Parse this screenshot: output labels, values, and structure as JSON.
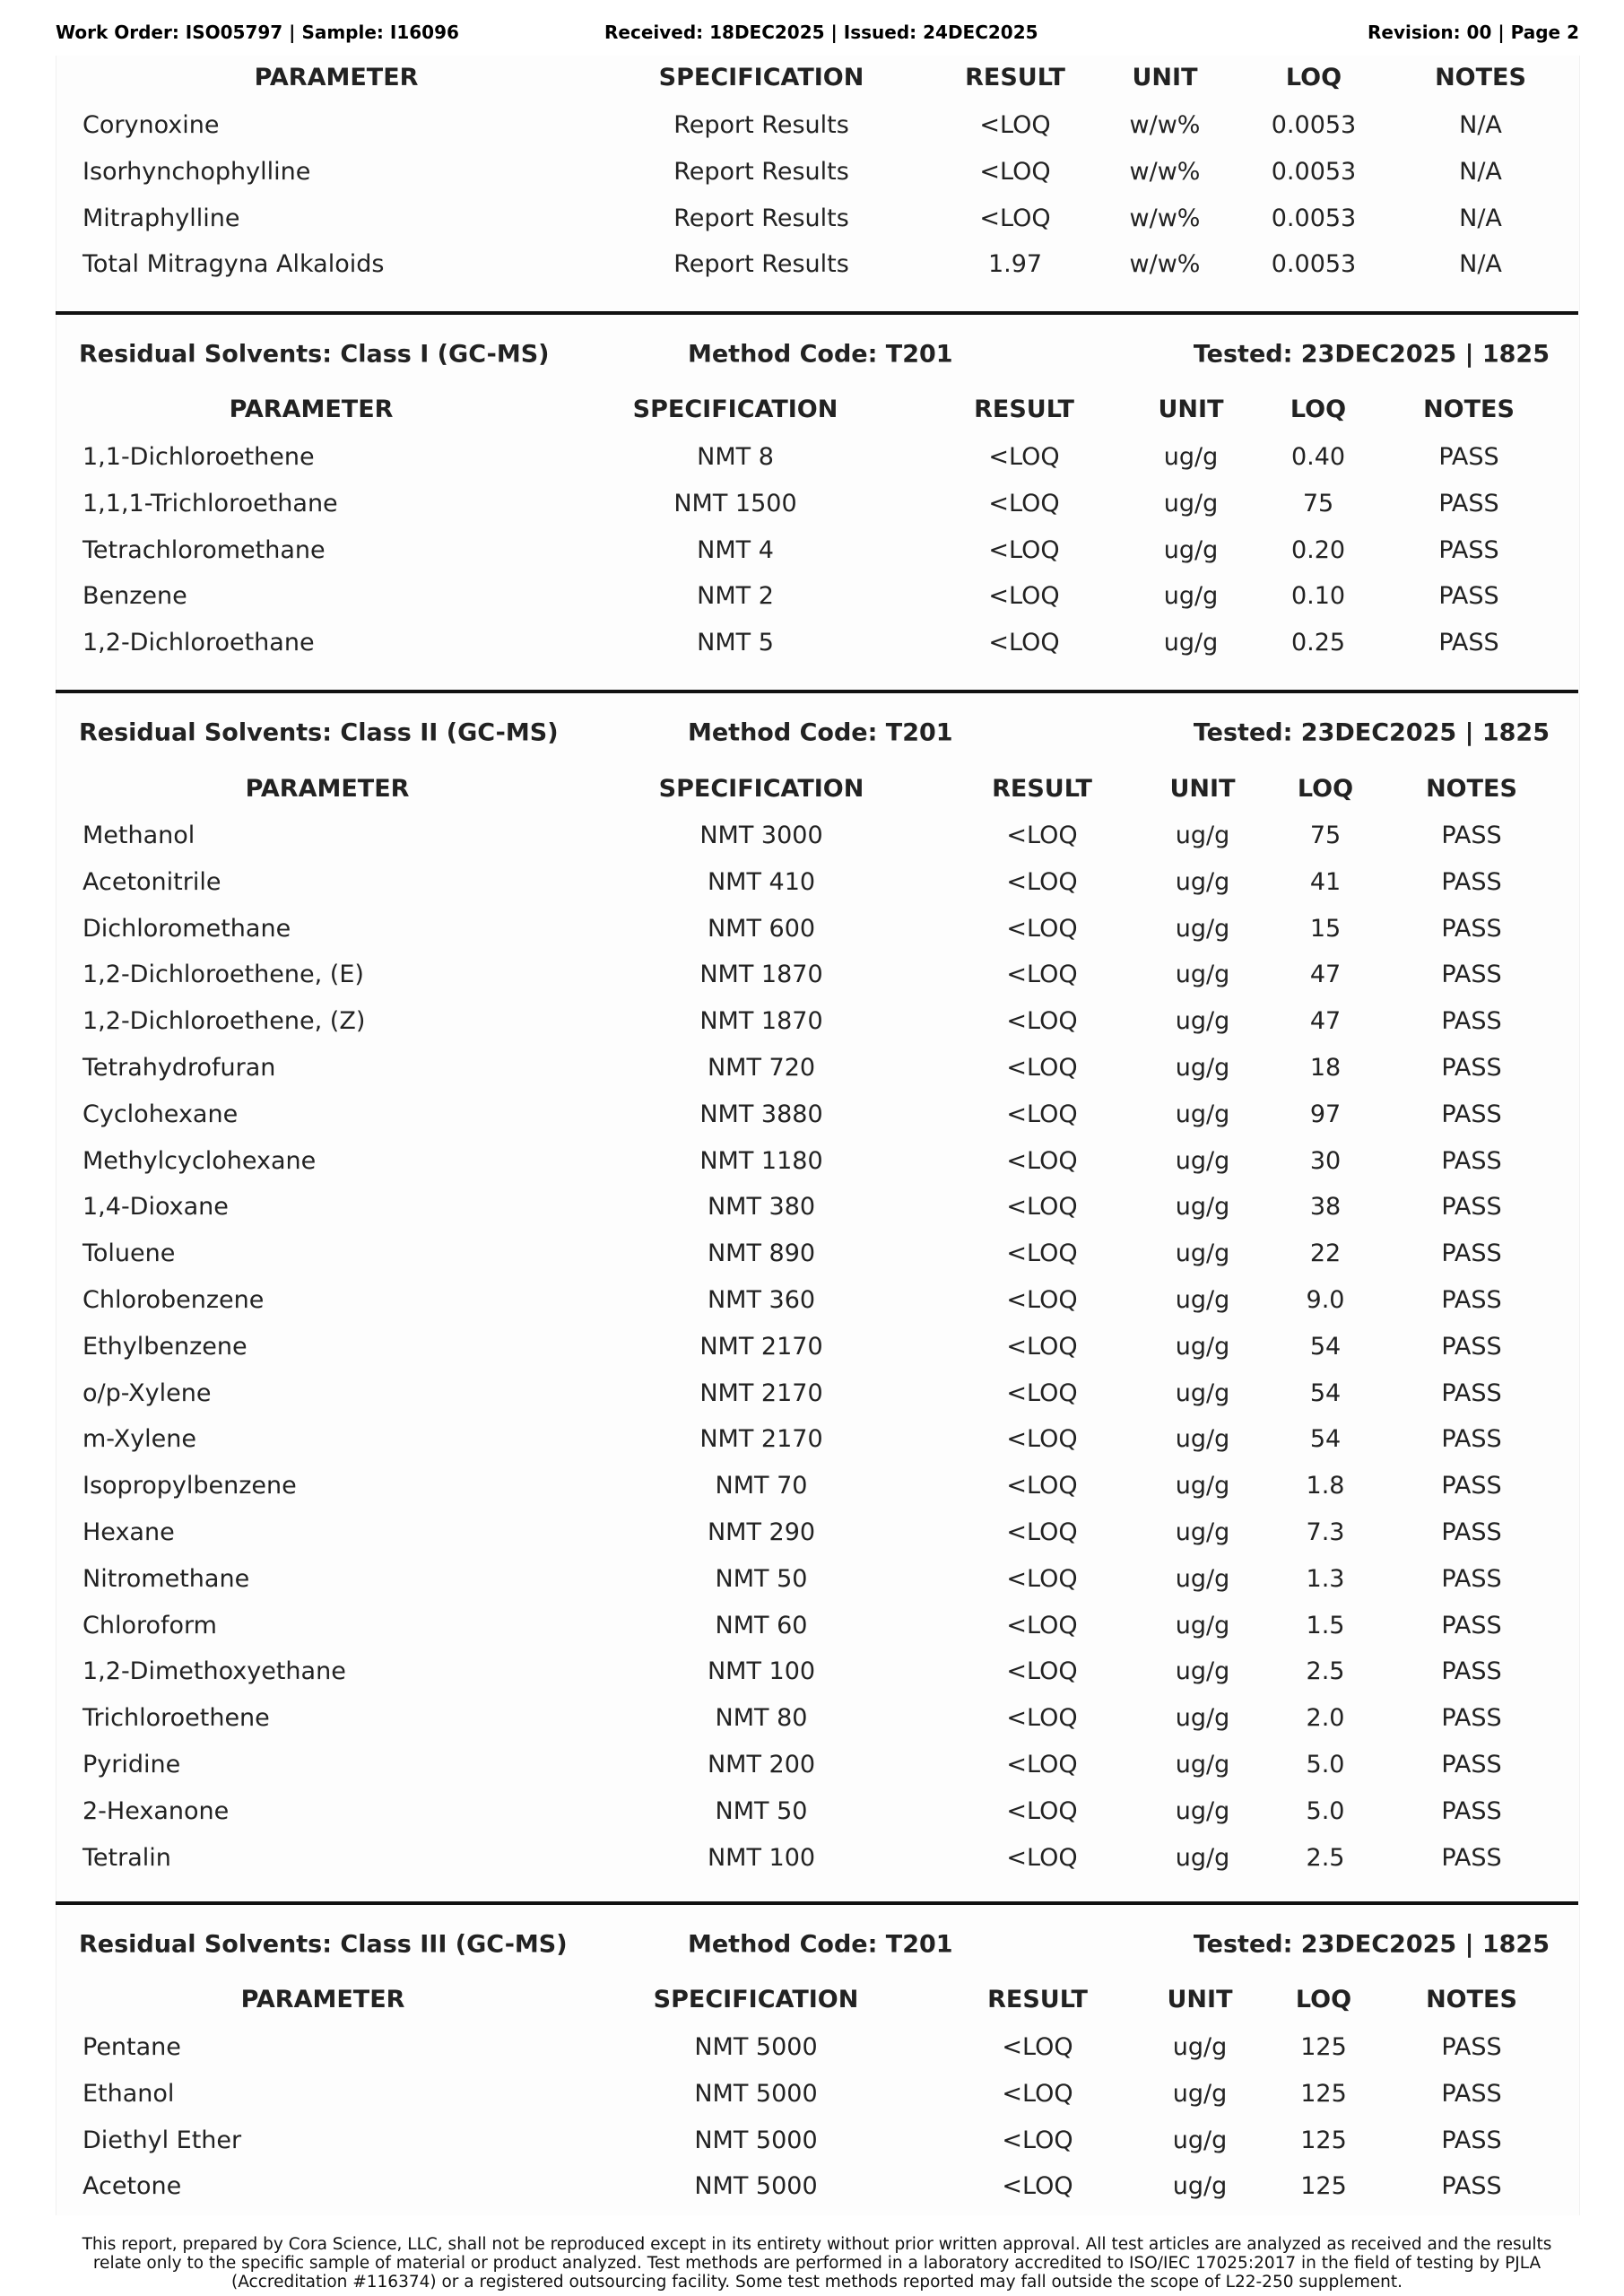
{
  "header": {
    "left": "Work Order: ISO05797 | Sample: I16096",
    "center": "Received: 18DEC2025 | Issued: 24DEC2025",
    "right": "Revision: 00 | Page 2"
  },
  "columns": [
    "PARAMETER",
    "SPECIFICATION",
    "RESULT",
    "UNIT",
    "LOQ",
    "NOTES"
  ],
  "sections": [
    {
      "title": "",
      "method": "",
      "tested": "",
      "rows": [
        [
          "Corynoxine",
          "Report Results",
          "<LOQ",
          "w/w%",
          "0.0053",
          "N/A"
        ],
        [
          "Isorhynchophylline",
          "Report Results",
          "<LOQ",
          "w/w%",
          "0.0053",
          "N/A"
        ],
        [
          "Mitraphylline",
          "Report Results",
          "<LOQ",
          "w/w%",
          "0.0053",
          "N/A"
        ],
        [
          "Total Mitragyna Alkaloids",
          "Report Results",
          "1.97",
          "w/w%",
          "0.0053",
          "N/A"
        ]
      ]
    },
    {
      "title": "Residual Solvents: Class I (GC-MS)",
      "method": "Method Code: T201",
      "tested": "Tested: 23DEC2025 | 1825",
      "rows": [
        [
          "1,1-Dichloroethene",
          "NMT 8",
          "<LOQ",
          "ug/g",
          "0.40",
          "PASS"
        ],
        [
          "1,1,1-Trichloroethane",
          "NMT 1500",
          "<LOQ",
          "ug/g",
          "75",
          "PASS"
        ],
        [
          "Tetrachloromethane",
          "NMT 4",
          "<LOQ",
          "ug/g",
          "0.20",
          "PASS"
        ],
        [
          "Benzene",
          "NMT 2",
          "<LOQ",
          "ug/g",
          "0.10",
          "PASS"
        ],
        [
          "1,2-Dichloroethane",
          "NMT 5",
          "<LOQ",
          "ug/g",
          "0.25",
          "PASS"
        ]
      ]
    },
    {
      "title": "Residual Solvents: Class II (GC-MS)",
      "method": "Method Code: T201",
      "tested": "Tested: 23DEC2025 | 1825",
      "rows": [
        [
          "Methanol",
          "NMT 3000",
          "<LOQ",
          "ug/g",
          "75",
          "PASS"
        ],
        [
          "Acetonitrile",
          "NMT 410",
          "<LOQ",
          "ug/g",
          "41",
          "PASS"
        ],
        [
          "Dichloromethane",
          "NMT 600",
          "<LOQ",
          "ug/g",
          "15",
          "PASS"
        ],
        [
          "1,2-Dichloroethene, (E)",
          "NMT 1870",
          "<LOQ",
          "ug/g",
          "47",
          "PASS"
        ],
        [
          "1,2-Dichloroethene, (Z)",
          "NMT 1870",
          "<LOQ",
          "ug/g",
          "47",
          "PASS"
        ],
        [
          "Tetrahydrofuran",
          "NMT 720",
          "<LOQ",
          "ug/g",
          "18",
          "PASS"
        ],
        [
          "Cyclohexane",
          "NMT 3880",
          "<LOQ",
          "ug/g",
          "97",
          "PASS"
        ],
        [
          "Methylcyclohexane",
          "NMT 1180",
          "<LOQ",
          "ug/g",
          "30",
          "PASS"
        ],
        [
          "1,4-Dioxane",
          "NMT 380",
          "<LOQ",
          "ug/g",
          "38",
          "PASS"
        ],
        [
          "Toluene",
          "NMT 890",
          "<LOQ",
          "ug/g",
          "22",
          "PASS"
        ],
        [
          "Chlorobenzene",
          "NMT 360",
          "<LOQ",
          "ug/g",
          "9.0",
          "PASS"
        ],
        [
          "Ethylbenzene",
          "NMT 2170",
          "<LOQ",
          "ug/g",
          "54",
          "PASS"
        ],
        [
          "o/p-Xylene",
          "NMT 2170",
          "<LOQ",
          "ug/g",
          "54",
          "PASS"
        ],
        [
          "m-Xylene",
          "NMT 2170",
          "<LOQ",
          "ug/g",
          "54",
          "PASS"
        ],
        [
          "Isopropylbenzene",
          "NMT 70",
          "<LOQ",
          "ug/g",
          "1.8",
          "PASS"
        ],
        [
          "Hexane",
          "NMT 290",
          "<LOQ",
          "ug/g",
          "7.3",
          "PASS"
        ],
        [
          "Nitromethane",
          "NMT 50",
          "<LOQ",
          "ug/g",
          "1.3",
          "PASS"
        ],
        [
          "Chloroform",
          "NMT 60",
          "<LOQ",
          "ug/g",
          "1.5",
          "PASS"
        ],
        [
          "1,2-Dimethoxyethane",
          "NMT 100",
          "<LOQ",
          "ug/g",
          "2.5",
          "PASS"
        ],
        [
          "Trichloroethene",
          "NMT 80",
          "<LOQ",
          "ug/g",
          "2.0",
          "PASS"
        ],
        [
          "Pyridine",
          "NMT 200",
          "<LOQ",
          "ug/g",
          "5.0",
          "PASS"
        ],
        [
          "2-Hexanone",
          "NMT 50",
          "<LOQ",
          "ug/g",
          "5.0",
          "PASS"
        ],
        [
          "Tetralin",
          "NMT 100",
          "<LOQ",
          "ug/g",
          "2.5",
          "PASS"
        ]
      ]
    },
    {
      "title": "Residual Solvents: Class III (GC-MS)",
      "method": "Method Code: T201",
      "tested": "Tested: 23DEC2025 | 1825",
      "rows": [
        [
          "Pentane",
          "NMT 5000",
          "<LOQ",
          "ug/g",
          "125",
          "PASS"
        ],
        [
          "Ethanol",
          "NMT 5000",
          "<LOQ",
          "ug/g",
          "125",
          "PASS"
        ],
        [
          "Diethyl Ether",
          "NMT 5000",
          "<LOQ",
          "ug/g",
          "125",
          "PASS"
        ],
        [
          "Acetone",
          "NMT 5000",
          "<LOQ",
          "ug/g",
          "125",
          "PASS"
        ]
      ]
    }
  ],
  "footer": "This report, prepared by Cora Science, LLC, shall not be reproduced except in its entirety without prior written approval. All test articles are analyzed as received and the results relate only to the specific sample of material or product analyzed. Test methods are performed in a laboratory accredited to ISO/IEC 17025:2017 in the field of testing by PJLA (Accreditation #116374) or a registered outsourcing facility. Some test methods reported may fall outside the scope of L22-250 supplement."
}
